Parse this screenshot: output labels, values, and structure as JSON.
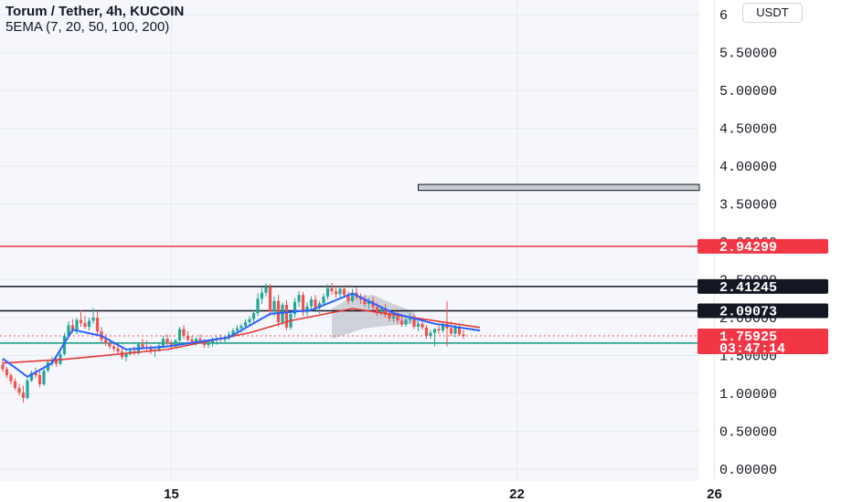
{
  "header": {
    "title": "Torum / Tether, 4h, KUCOIN",
    "indicator": "5EMA (7, 20, 50, 100, 200)",
    "currency_button": "USDT"
  },
  "colors": {
    "background": "#f5f7fc",
    "up": "#26a69a",
    "down": "#ef5350",
    "ema_fast": "#2962ff",
    "ema_slow": "#e53935",
    "level_red": "#f23645",
    "level_black": "#131722",
    "level_green": "#089981"
  },
  "chart_data": {
    "type": "candlestick",
    "y_axis": {
      "range": [
        -0.05,
        6.05
      ],
      "ticks": [
        "0.00000",
        "0.50000",
        "1.00000",
        "1.50000",
        "2.00000",
        "2.50000",
        "3.00000",
        "3.50000",
        "4.00000",
        "4.50000",
        "5.00000",
        "5.50000",
        "6"
      ]
    },
    "x_axis": {
      "labels": [
        {
          "text": "15",
          "bar": 41
        },
        {
          "text": "22",
          "bar": 125
        },
        {
          "text": "26",
          "bar": 173
        }
      ]
    },
    "candles": [
      [
        1.38,
        1.45,
        1.28,
        1.32
      ],
      [
        1.32,
        1.35,
        1.2,
        1.24
      ],
      [
        1.24,
        1.27,
        1.12,
        1.16
      ],
      [
        1.16,
        1.2,
        1.04,
        1.07
      ],
      [
        1.07,
        1.12,
        0.97,
        1.01
      ],
      [
        1.01,
        1.1,
        0.88,
        0.94
      ],
      [
        0.94,
        1.2,
        0.92,
        1.17
      ],
      [
        1.17,
        1.3,
        1.15,
        1.27
      ],
      [
        1.27,
        1.34,
        1.2,
        1.24
      ],
      [
        1.24,
        1.3,
        1.08,
        1.12
      ],
      [
        1.12,
        1.34,
        1.1,
        1.3
      ],
      [
        1.3,
        1.45,
        1.28,
        1.41
      ],
      [
        1.41,
        1.48,
        1.36,
        1.44
      ],
      [
        1.44,
        1.5,
        1.35,
        1.39
      ],
      [
        1.39,
        1.55,
        1.37,
        1.52
      ],
      [
        1.52,
        1.8,
        1.5,
        1.76
      ],
      [
        1.76,
        1.95,
        1.74,
        1.9
      ],
      [
        1.9,
        1.98,
        1.8,
        1.84
      ],
      [
        1.84,
        2.0,
        1.78,
        1.97
      ],
      [
        1.97,
        2.1,
        1.88,
        1.93
      ],
      [
        1.93,
        2.02,
        1.85,
        1.88
      ],
      [
        1.88,
        2.0,
        1.83,
        1.96
      ],
      [
        1.96,
        2.13,
        1.92,
        2.0
      ],
      [
        2.0,
        2.08,
        1.78,
        1.82
      ],
      [
        1.82,
        1.88,
        1.67,
        1.71
      ],
      [
        1.71,
        1.78,
        1.63,
        1.66
      ],
      [
        1.66,
        1.72,
        1.58,
        1.62
      ],
      [
        1.62,
        1.68,
        1.55,
        1.59
      ],
      [
        1.59,
        1.66,
        1.52,
        1.55
      ],
      [
        1.55,
        1.6,
        1.45,
        1.48
      ],
      [
        1.48,
        1.56,
        1.42,
        1.52
      ],
      [
        1.52,
        1.6,
        1.5,
        1.56
      ],
      [
        1.56,
        1.62,
        1.5,
        1.53
      ],
      [
        1.53,
        1.68,
        1.51,
        1.65
      ],
      [
        1.65,
        1.72,
        1.58,
        1.61
      ],
      [
        1.61,
        1.7,
        1.55,
        1.6
      ],
      [
        1.6,
        1.64,
        1.52,
        1.56
      ],
      [
        1.56,
        1.62,
        1.48,
        1.58
      ],
      [
        1.58,
        1.66,
        1.55,
        1.63
      ],
      [
        1.63,
        1.76,
        1.6,
        1.72
      ],
      [
        1.72,
        1.78,
        1.62,
        1.66
      ],
      [
        1.66,
        1.7,
        1.58,
        1.62
      ],
      [
        1.62,
        1.72,
        1.6,
        1.7
      ],
      [
        1.7,
        1.88,
        1.68,
        1.85
      ],
      [
        1.85,
        1.9,
        1.72,
        1.76
      ],
      [
        1.76,
        1.82,
        1.68,
        1.71
      ],
      [
        1.71,
        1.76,
        1.64,
        1.68
      ],
      [
        1.68,
        1.74,
        1.63,
        1.72
      ],
      [
        1.72,
        1.78,
        1.66,
        1.7
      ],
      [
        1.7,
        1.72,
        1.6,
        1.64
      ],
      [
        1.64,
        1.7,
        1.6,
        1.67
      ],
      [
        1.67,
        1.74,
        1.62,
        1.7
      ],
      [
        1.7,
        1.75,
        1.64,
        1.73
      ],
      [
        1.73,
        1.78,
        1.68,
        1.71
      ],
      [
        1.71,
        1.76,
        1.66,
        1.74
      ],
      [
        1.74,
        1.82,
        1.7,
        1.78
      ],
      [
        1.78,
        1.86,
        1.74,
        1.83
      ],
      [
        1.83,
        1.9,
        1.78,
        1.86
      ],
      [
        1.86,
        1.92,
        1.8,
        1.89
      ],
      [
        1.89,
        1.98,
        1.86,
        1.94
      ],
      [
        1.94,
        2.02,
        1.88,
        1.98
      ],
      [
        1.98,
        2.1,
        1.94,
        2.06
      ],
      [
        2.06,
        2.32,
        2.02,
        2.25
      ],
      [
        2.25,
        2.4,
        2.18,
        2.33
      ],
      [
        2.33,
        2.45,
        2.28,
        2.4
      ],
      [
        2.4,
        2.44,
        2.02,
        2.08
      ],
      [
        2.08,
        2.28,
        2.02,
        2.22
      ],
      [
        2.22,
        2.3,
        1.88,
        1.94
      ],
      [
        1.94,
        2.2,
        1.9,
        2.17
      ],
      [
        2.17,
        2.23,
        1.83,
        1.87
      ],
      [
        1.87,
        2.08,
        1.84,
        2.05
      ],
      [
        2.05,
        2.26,
        2.0,
        2.21
      ],
      [
        2.21,
        2.35,
        2.14,
        2.3
      ],
      [
        2.3,
        2.34,
        2.02,
        2.07
      ],
      [
        2.07,
        2.2,
        2.02,
        2.15
      ],
      [
        2.15,
        2.28,
        2.1,
        2.24
      ],
      [
        2.24,
        2.3,
        2.1,
        2.13
      ],
      [
        2.13,
        2.22,
        2.06,
        2.19
      ],
      [
        2.19,
        2.32,
        2.15,
        2.28
      ],
      [
        2.28,
        2.44,
        2.24,
        2.39
      ],
      [
        2.39,
        2.46,
        2.3,
        2.35
      ],
      [
        2.35,
        2.42,
        2.26,
        2.31
      ],
      [
        2.31,
        2.42,
        2.26,
        2.38
      ],
      [
        2.38,
        2.43,
        2.28,
        2.3
      ],
      [
        2.3,
        2.35,
        2.18,
        2.22
      ],
      [
        2.22,
        2.38,
        2.2,
        2.33
      ],
      [
        2.33,
        2.4,
        2.24,
        2.27
      ],
      [
        2.27,
        2.32,
        2.18,
        2.24
      ],
      [
        2.24,
        2.3,
        2.14,
        2.18
      ],
      [
        2.18,
        2.26,
        2.12,
        2.22
      ],
      [
        2.22,
        2.28,
        2.1,
        2.14
      ],
      [
        2.14,
        2.2,
        2.02,
        2.06
      ],
      [
        2.06,
        2.16,
        2.03,
        2.12
      ],
      [
        2.12,
        2.18,
        2.0,
        2.04
      ],
      [
        2.04,
        2.1,
        1.95,
        1.99
      ],
      [
        1.99,
        2.06,
        1.94,
        2.02
      ],
      [
        2.02,
        2.08,
        1.92,
        1.96
      ],
      [
        1.96,
        2.02,
        1.88,
        1.91
      ],
      [
        1.91,
        2.0,
        1.88,
        1.97
      ],
      [
        1.97,
        2.06,
        1.93,
        2.01
      ],
      [
        2.01,
        2.04,
        1.85,
        1.88
      ],
      [
        1.88,
        1.96,
        1.82,
        1.92
      ],
      [
        1.92,
        1.98,
        1.84,
        1.87
      ],
      [
        1.87,
        1.9,
        1.72,
        1.76
      ],
      [
        1.76,
        1.84,
        1.72,
        1.8
      ],
      [
        1.8,
        1.86,
        1.62,
        1.85
      ],
      [
        1.85,
        1.9,
        1.78,
        1.83
      ],
      [
        1.83,
        1.95,
        1.8,
        1.92
      ],
      [
        1.92,
        2.22,
        1.62,
        1.86
      ],
      [
        1.86,
        1.95,
        1.76,
        1.79
      ],
      [
        1.79,
        1.92,
        1.74,
        1.88
      ],
      [
        1.88,
        1.92,
        1.76,
        1.78
      ],
      [
        1.78,
        1.84,
        1.72,
        1.76
      ]
    ],
    "ema_fast": [
      [
        0,
        1.46
      ],
      [
        6,
        1.22
      ],
      [
        12,
        1.4
      ],
      [
        17,
        1.84
      ],
      [
        24,
        1.76
      ],
      [
        30,
        1.58
      ],
      [
        40,
        1.62
      ],
      [
        55,
        1.74
      ],
      [
        65,
        2.05
      ],
      [
        75,
        2.1
      ],
      [
        85,
        2.32
      ],
      [
        95,
        2.06
      ],
      [
        105,
        1.92
      ],
      [
        116,
        1.83
      ]
    ],
    "ema_slow": [
      [
        0,
        1.4
      ],
      [
        15,
        1.45
      ],
      [
        40,
        1.58
      ],
      [
        60,
        1.8
      ],
      [
        70,
        1.96
      ],
      [
        85,
        2.12
      ],
      [
        100,
        2.0
      ],
      [
        116,
        1.87
      ]
    ],
    "levels": [
      {
        "name": "resistance-red",
        "value": 2.94299,
        "label": "2.94299",
        "color": "#f23645"
      },
      {
        "name": "resistance-upper",
        "value": 2.41245,
        "label": "2.41245",
        "color": "#131722"
      },
      {
        "name": "resistance-lower",
        "value": 2.09073,
        "label": "2.09073",
        "color": "#131722"
      },
      {
        "name": "support-green",
        "value": 1.66441,
        "label": "1.66441",
        "color": "#089981"
      }
    ],
    "last_price": {
      "value": 1.75925,
      "label": "1.75925",
      "countdown": "03:47:14",
      "color": "#f23645"
    },
    "target_box": {
      "bar_start": 101,
      "bar_end": 176,
      "value_low": 3.68,
      "value_high": 3.76
    },
    "cloud": {
      "bar_start": 80,
      "points": [
        [
          80,
          2.12
        ],
        [
          85,
          2.28
        ],
        [
          90,
          2.3
        ],
        [
          95,
          2.18
        ],
        [
          100,
          2.08
        ],
        [
          101,
          1.92
        ],
        [
          95,
          1.9
        ],
        [
          88,
          1.86
        ],
        [
          80,
          1.72
        ]
      ]
    }
  }
}
